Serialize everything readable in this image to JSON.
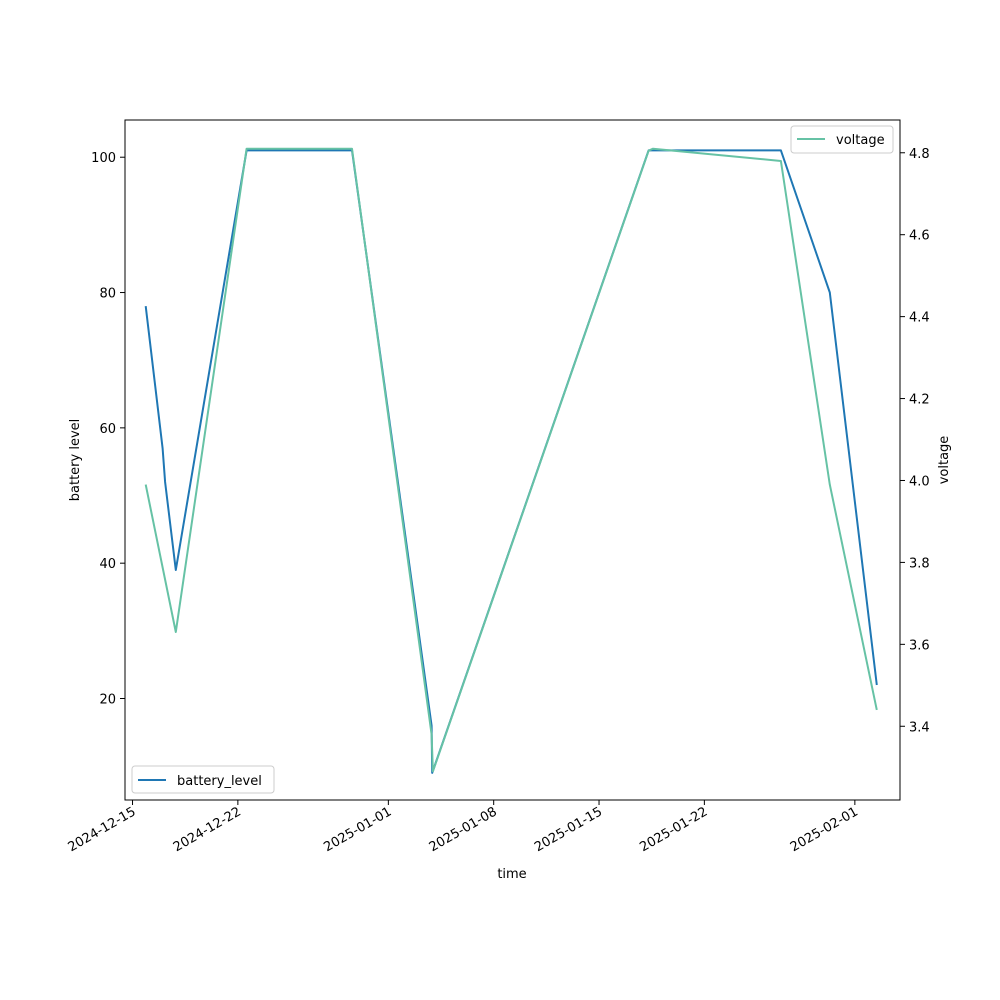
{
  "chart_data": {
    "type": "line",
    "xlabel": "time",
    "ylabel_left": "battery level",
    "ylabel_right": "voltage",
    "x_range": [
      "2024-12-14T12:00",
      "2025-02-04T00:00"
    ],
    "x_ticks": [
      "2024-12-15",
      "2024-12-22",
      "2025-01-01",
      "2025-01-08",
      "2025-01-15",
      "2025-01-22",
      "2025-02-01"
    ],
    "ylim_left": [
      5,
      105.5
    ],
    "yticks_left": [
      20,
      40,
      60,
      80,
      100
    ],
    "ylim_right": [
      3.22,
      4.88
    ],
    "yticks_right": [
      3.4,
      3.6,
      3.8,
      4.0,
      4.2,
      4.4,
      4.6,
      4.8
    ],
    "grid": false,
    "series": [
      {
        "name": "battery_level",
        "axis": "left",
        "color": "#1f77b4",
        "legend": "bottom-left",
        "x": [
          "2024-12-15T21:00",
          "2024-12-17T00:00",
          "2024-12-17T04:00",
          "2024-12-17T21:00",
          "2024-12-22T14:00",
          "2024-12-29T14:00",
          "2025-01-03T21:00",
          "2025-01-03T22:00",
          "2025-01-18T07:00",
          "2025-01-27T02:00",
          "2025-01-30T08:00",
          "2025-02-02T11:00"
        ],
        "y": [
          78,
          57,
          52,
          39,
          101,
          101,
          16,
          9,
          101,
          101,
          80,
          22
        ]
      },
      {
        "name": "voltage",
        "axis": "right",
        "color": "#66c2a5",
        "legend": "top-right",
        "x": [
          "2024-12-15T21:00",
          "2024-12-17T21:00",
          "2024-12-22T14:00",
          "2024-12-29T14:00",
          "2025-01-03T21:00",
          "2025-01-03T23:00",
          "2025-01-18T07:00",
          "2025-01-18T14:00",
          "2025-01-27T02:00",
          "2025-01-30T08:00",
          "2025-02-02T11:00"
        ],
        "y": [
          3.99,
          3.63,
          4.81,
          4.81,
          3.38,
          3.29,
          4.805,
          4.81,
          4.78,
          3.99,
          3.44
        ]
      }
    ]
  }
}
